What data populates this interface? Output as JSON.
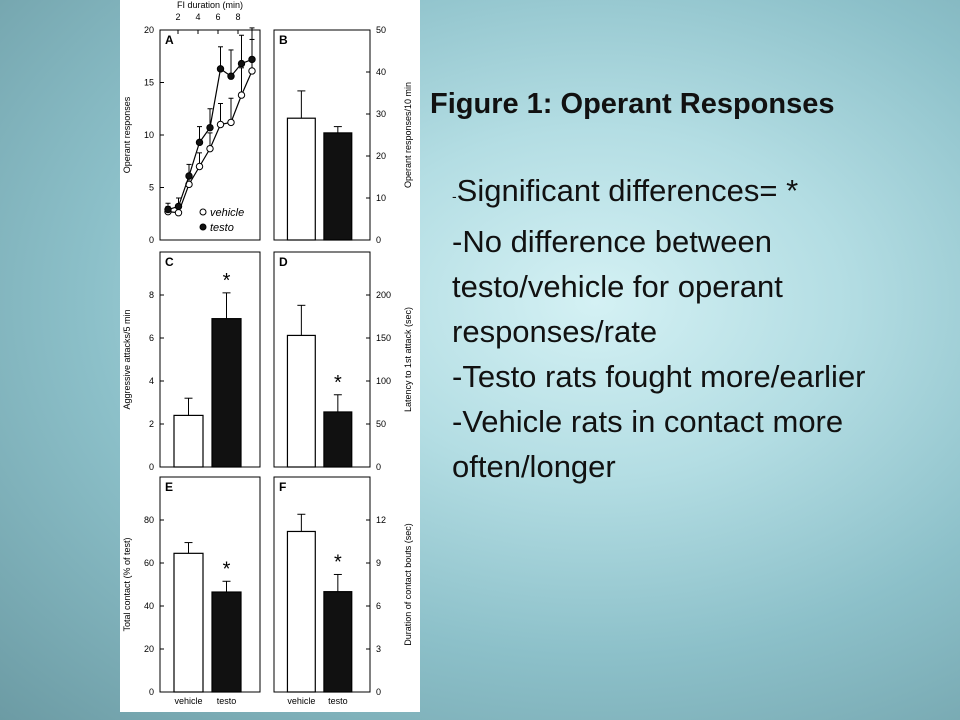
{
  "title": "Figure 1:  Operant Responses",
  "bullets": [
    {
      "prefix": "-",
      "text": "Significant differences= *"
    },
    {
      "prefix": "",
      "text": "-No difference between testo/vehicle for operant responses/rate"
    },
    {
      "prefix": "",
      "text": "-Testo rats fought more/earlier"
    },
    {
      "prefix": "",
      "text": "-Vehicle rats in contact more often/longer"
    }
  ],
  "colors": {
    "vehicle": "#ffffff",
    "testo": "#111111"
  },
  "chart_data": [
    {
      "panel": "A",
      "type": "line",
      "top_axis_label": "FI duration (min)",
      "top_ticks": [
        "2",
        "4",
        "6",
        "8"
      ],
      "ylabel": "Operant responses",
      "ylim": [
        0,
        20
      ],
      "yticks": [
        "0",
        "5",
        "10",
        "15",
        "20"
      ],
      "x": [
        1,
        2,
        3,
        4,
        5,
        6,
        7,
        8
      ],
      "series": [
        {
          "name": "vehicle",
          "values": [
            2.7,
            2.6,
            5.3,
            7.0,
            8.7,
            11.0,
            11.2,
            13.8,
            16.1
          ],
          "x": [
            1,
            2,
            3,
            4,
            5,
            6,
            7,
            8,
            9
          ],
          "errors": [
            0.5,
            0.7,
            1.0,
            1.3,
            1.5,
            2.0,
            2.3,
            2.6,
            3.0
          ],
          "marker": "open-circle"
        },
        {
          "name": "testo",
          "values": [
            2.9,
            3.2,
            6.1,
            9.3,
            10.7,
            16.3,
            15.6,
            16.8,
            17.2
          ],
          "x": [
            1,
            2,
            3,
            4,
            5,
            6,
            7,
            8,
            9
          ],
          "errors": [
            0.6,
            0.8,
            1.1,
            1.5,
            1.8,
            2.1,
            2.5,
            2.7,
            3.0
          ],
          "marker": "filled-circle"
        }
      ],
      "legend": [
        "vehicle",
        "testo"
      ]
    },
    {
      "panel": "B",
      "type": "bar",
      "ylabel": "Operant responses/10 min",
      "ylim": [
        0,
        50
      ],
      "yticks": [
        "0",
        "10",
        "20",
        "30",
        "40",
        "50"
      ],
      "categories": [
        "vehicle",
        "testo"
      ],
      "values": [
        29,
        25.5
      ],
      "errors": [
        6.5,
        1.5
      ],
      "significant": [
        false,
        false
      ]
    },
    {
      "panel": "C",
      "type": "bar",
      "ylabel": "Aggressive attacks/5 min",
      "ylim": [
        0,
        10
      ],
      "yticks": [
        "0",
        "2",
        "4",
        "6",
        "8"
      ],
      "categories": [
        "vehicle",
        "testo"
      ],
      "values": [
        2.4,
        6.9
      ],
      "errors": [
        0.8,
        1.2
      ],
      "significant": [
        false,
        true
      ],
      "annotation": "*"
    },
    {
      "panel": "D",
      "type": "bar",
      "ylabel": "Latency to 1st attack (sec)",
      "ylim": [
        0,
        250
      ],
      "yticks": [
        "0",
        "50",
        "100",
        "150",
        "200"
      ],
      "categories": [
        "vehicle",
        "testo"
      ],
      "values": [
        153,
        64
      ],
      "errors": [
        35,
        20
      ],
      "significant": [
        false,
        true
      ],
      "annotation": "*"
    },
    {
      "panel": "E",
      "type": "bar",
      "ylabel": "Total contact (% of test)",
      "ylim": [
        0,
        100
      ],
      "yticks": [
        "0",
        "20",
        "40",
        "60",
        "80"
      ],
      "categories": [
        "vehicle",
        "testo"
      ],
      "values": [
        64.5,
        46.5
      ],
      "errors": [
        5,
        5
      ],
      "significant": [
        false,
        true
      ],
      "annotation": "*"
    },
    {
      "panel": "F",
      "type": "bar",
      "ylabel": "Duration of contact bouts (sec)",
      "ylim": [
        0,
        15
      ],
      "yticks": [
        "0",
        "3",
        "6",
        "9",
        "12"
      ],
      "categories": [
        "vehicle",
        "testo"
      ],
      "values": [
        11.2,
        7.0
      ],
      "errors": [
        1.2,
        1.2
      ],
      "significant": [
        false,
        true
      ],
      "annotation": "*",
      "xlabels": [
        "vehicle",
        "testo"
      ]
    }
  ]
}
